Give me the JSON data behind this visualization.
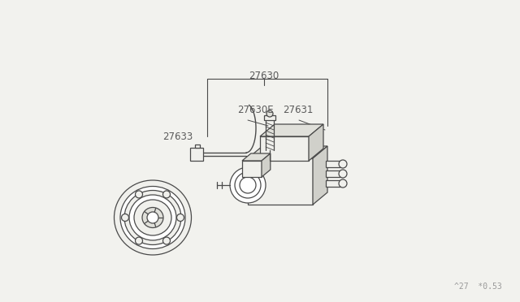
{
  "bg_color": "#f2f2ee",
  "line_color": "#4a4a4a",
  "text_color": "#5a5a5a",
  "fill_light": "#f0f0ec",
  "fill_mid": "#e0e0da",
  "fill_dark": "#d0d0ca",
  "label_27630": "27630",
  "label_27630E": "27630E",
  "label_27631": "27631",
  "label_27633": "27633",
  "watermark": "^27  *0.53",
  "lw": 0.9
}
